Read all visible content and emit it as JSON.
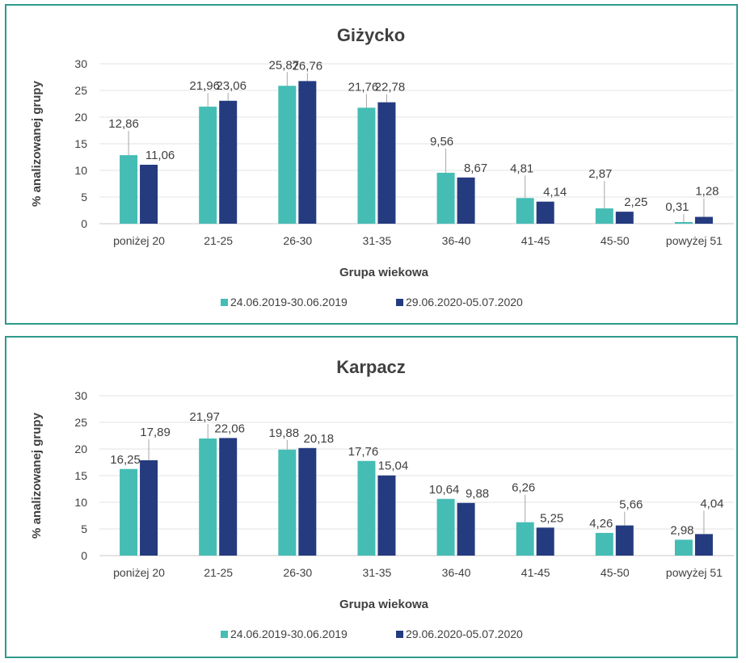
{
  "chart_data": [
    {
      "type": "bar",
      "title": "Giżycko",
      "xlabel": "Grupa wiekowa",
      "ylabel": "% analizowanej grupy",
      "ylim": [
        0,
        30
      ],
      "yticks": [
        0,
        5,
        10,
        15,
        20,
        25,
        30
      ],
      "grid": true,
      "legend": "bottom",
      "categories": [
        "poniżej 20",
        "21-25",
        "26-30",
        "31-35",
        "36-40",
        "41-45",
        "45-50",
        "powyżej 51"
      ],
      "series": [
        {
          "name": "24.06.2019-30.06.2019",
          "color": "#45bdb5",
          "values": [
            12.86,
            21.96,
            25.87,
            21.76,
            9.56,
            4.81,
            2.87,
            0.31
          ],
          "labels": [
            "12,86",
            "21,96",
            "25,87",
            "21,76",
            "9,56",
            "4,81",
            "2,87",
            "0,31"
          ]
        },
        {
          "name": "29.06.2020-05.07.2020",
          "color": "#253b80",
          "values": [
            11.06,
            23.06,
            26.76,
            22.78,
            8.67,
            4.14,
            2.25,
            1.28
          ],
          "labels": [
            "11,06",
            "23,06",
            "26,76",
            "22,78",
            "8,67",
            "4,14",
            "2,25",
            "1,28"
          ]
        }
      ]
    },
    {
      "type": "bar",
      "title": "Karpacz",
      "xlabel": "Grupa wiekowa",
      "ylabel": "% analizowanej grupy",
      "ylim": [
        0,
        30
      ],
      "yticks": [
        0,
        5,
        10,
        15,
        20,
        25,
        30
      ],
      "grid": true,
      "legend": "bottom",
      "categories": [
        "poniżej 20",
        "21-25",
        "26-30",
        "31-35",
        "36-40",
        "41-45",
        "45-50",
        "powyżej 51"
      ],
      "series": [
        {
          "name": "24.06.2019-30.06.2019",
          "color": "#45bdb5",
          "values": [
            16.25,
            21.97,
            19.88,
            17.76,
            10.64,
            6.26,
            4.26,
            2.98
          ],
          "labels": [
            "16,25",
            "21,97",
            "19,88",
            "17,76",
            "10,64",
            "6,26",
            "4,26",
            "2,98"
          ]
        },
        {
          "name": "29.06.2020-05.07.2020",
          "color": "#253b80",
          "values": [
            17.89,
            22.06,
            20.18,
            15.04,
            9.88,
            5.25,
            5.66,
            4.04
          ],
          "labels": [
            "17,89",
            "22,06",
            "20,18",
            "15,04",
            "9,88",
            "5,25",
            "5,66",
            "4,04"
          ]
        }
      ]
    }
  ]
}
